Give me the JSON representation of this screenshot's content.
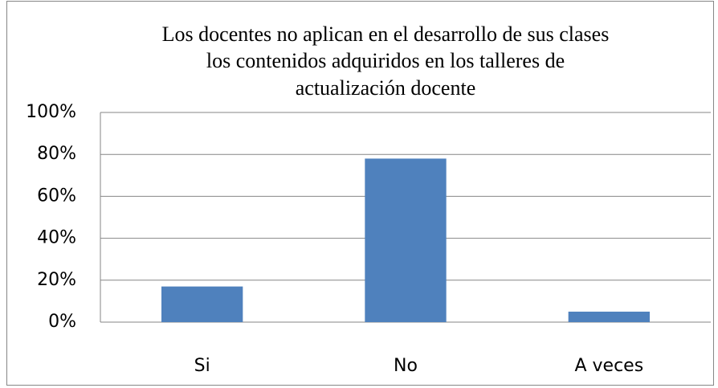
{
  "chart_data": {
    "type": "bar",
    "title": [
      "Los docentes no aplican en el desarrollo de sus clases",
      "los contenidos adquiridos en los talleres de",
      "actualización docente"
    ],
    "categories": [
      "Si",
      "No",
      "A veces"
    ],
    "values": [
      17,
      78,
      5
    ],
    "color": "#4f81bd",
    "ylim": [
      0,
      100
    ],
    "yticks": [
      {
        "value": 0,
        "label": "0%"
      },
      {
        "value": 20,
        "label": "20%"
      },
      {
        "value": 40,
        "label": "40%"
      },
      {
        "value": 60,
        "label": "60%"
      },
      {
        "value": 80,
        "label": "80%"
      },
      {
        "value": 100,
        "label": "100%"
      }
    ],
    "grid": true
  }
}
